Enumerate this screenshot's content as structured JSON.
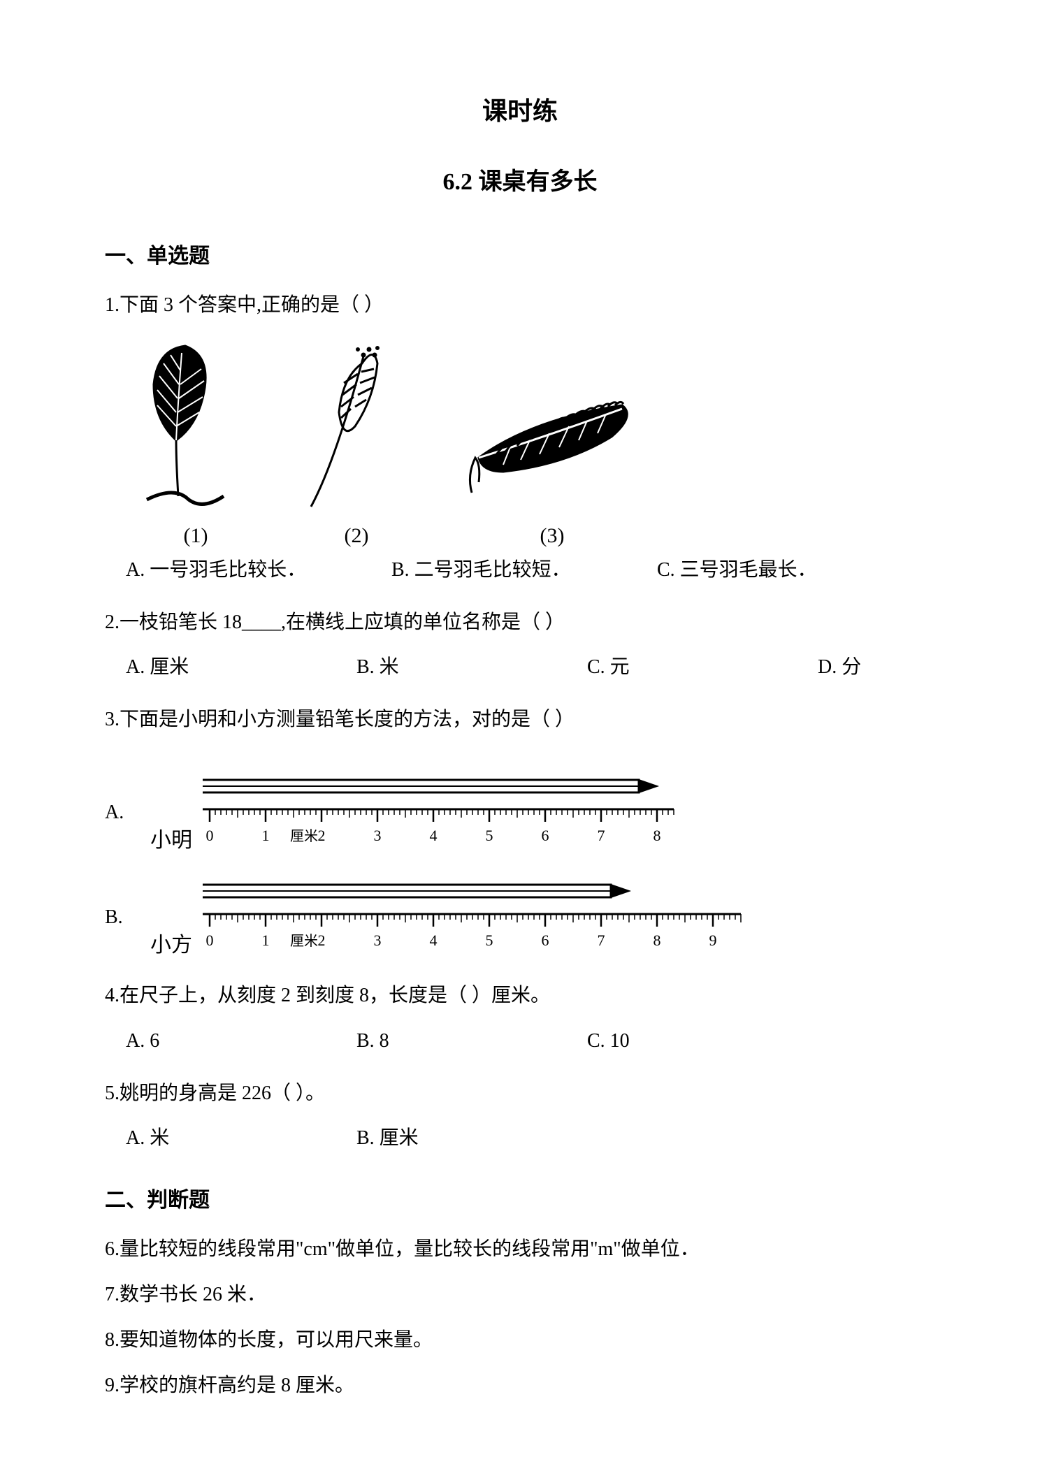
{
  "title": "课时练",
  "subtitle": "6.2 课桌有多长",
  "sections": {
    "s1": {
      "heading": "一、单选题"
    },
    "s2": {
      "heading": "二、判断题"
    }
  },
  "q1": {
    "text": "1.下面 3 个答案中,正确的是（   ）",
    "feather_labels": [
      "(1)",
      "(2)",
      "(3)"
    ],
    "options": {
      "a": "A. 一号羽毛比较长．",
      "b": "B. 二号羽毛比较短．",
      "c": "C. 三号羽毛最长．"
    }
  },
  "q2": {
    "text": "2.一枝铅笔长 18____,在横线上应填的单位名称是（   ）",
    "options": {
      "a": "A. 厘米",
      "b": "B. 米",
      "c": "C. 元",
      "d": "D. 分"
    }
  },
  "q3": {
    "text": "3.下面是小明和小方测量铅笔长度的方法，对的是（   ）",
    "rulerA": {
      "letter": "A.",
      "name": "小明",
      "start": 0,
      "end": 8,
      "unit_label_at": 1,
      "unit_label": "厘米",
      "pencil_tip_at": 8.0,
      "ruler_visible_end": 8.3
    },
    "rulerB": {
      "letter": "B.",
      "name": "小方",
      "start": 0,
      "end": 9,
      "unit_label_at": 1,
      "unit_label": "厘米",
      "pencil_tip_at": 7.5,
      "ruler_visible_end": 9.5
    }
  },
  "q4": {
    "text": "4.在尺子上，从刻度 2 到刻度 8，长度是（   ）厘米。",
    "options": {
      "a": "A. 6",
      "b": "B. 8",
      "c": "C. 10"
    }
  },
  "q5": {
    "text": "5.姚明的身高是 226（   ）。",
    "options": {
      "a": "A. 米",
      "b": "B. 厘米"
    }
  },
  "q6": {
    "text": "6.量比较短的线段常用\"cm\"做单位，量比较长的线段常用\"m\"做单位．"
  },
  "q7": {
    "text": "7.数学书长 26 米．"
  },
  "q8": {
    "text": "8.要知道物体的长度，可以用尺来量。"
  },
  "q9": {
    "text": "9.学校的旗杆高约是 8 厘米。"
  },
  "style": {
    "color_text": "#000000",
    "background": "#ffffff",
    "stroke": "#000000",
    "stroke_width": 3,
    "feather_fill": "#000000",
    "tick_minor_h": 8,
    "tick_mid_h": 12,
    "tick_major_h": 18,
    "number_fontsize": 22
  }
}
